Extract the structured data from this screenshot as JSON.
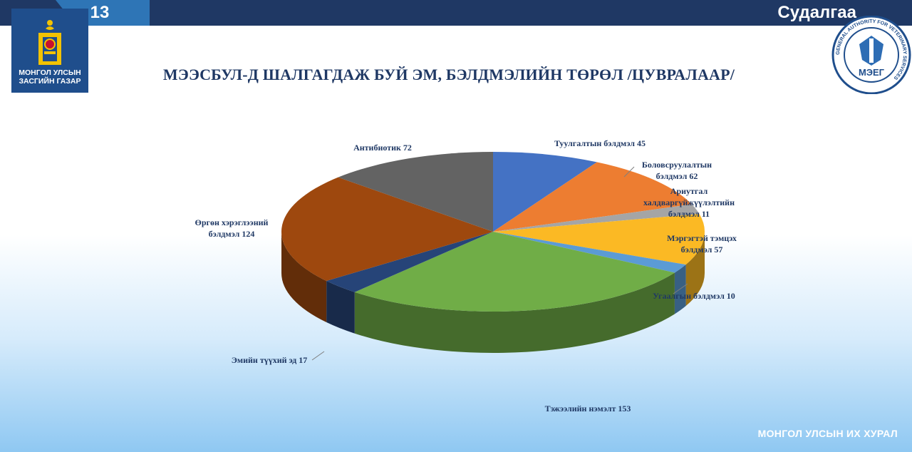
{
  "header": {
    "slide_number": "13",
    "section": "Судалгаа",
    "org_name_line1": "МОНГОЛ УЛСЫН",
    "org_name_line2": "ЗАСГИЙН ГАЗАР",
    "partner_logo_text": "МЭЕГ",
    "partner_logo_ring_text": "GENERAL AUTHORITY FOR VETERINARY SERVICES"
  },
  "footer": {
    "text": "МОНГОЛ УЛСЫН ИХ ХУРАЛ"
  },
  "colors": {
    "topbar": "#1f3864",
    "slide_tab": "#2e75b6",
    "title": "#1f3864"
  },
  "chart_data": {
    "type": "pie",
    "title": "МЭЭСБУЛ-Д ШАЛГАГДАЖ БУЙ ЭМ, БЭЛДМЭЛИЙН ТӨРӨЛ /ЦУВРАЛААР/",
    "style": "3d",
    "slices": [
      {
        "label": "Туулгалтын бэлдмэл",
        "value": 45,
        "color": "#4472c4",
        "label_lines": [
          "Туулгалтын бэлдмэл 45"
        ]
      },
      {
        "label": "Боловсруулалтын бэлдмэл",
        "value": 62,
        "color": "#ed7d31",
        "label_lines": [
          "Боловсруулалтын",
          "бэлдмэл 62"
        ]
      },
      {
        "label": "Ариутгал халдваргүйжүүлэлтийн бэлдмэл",
        "value": 11,
        "color": "#a5a5a5",
        "label_lines": [
          "Ариутгал",
          "халдваргүйжүүлэлтийн",
          "бэлдмэл 11"
        ]
      },
      {
        "label": "Мэргэгтэй тэмцэх бэлдмэл",
        "value": 57,
        "color": "#fbb924",
        "label_lines": [
          "Мэргэгтэй тэмцэх",
          "бэлдмэл 57"
        ]
      },
      {
        "label": "Угаалгын бэлдмэл",
        "value": 10,
        "color": "#5b9bd5",
        "label_lines": [
          "Угаалгын бэлдмэл 10"
        ]
      },
      {
        "label": "Тэжээлийн нэмэлт",
        "value": 153,
        "color": "#70ad47",
        "label_lines": [
          "Тэжээлийн нэмэлт 153"
        ]
      },
      {
        "label": "Эмийн түүхий эд",
        "value": 17,
        "color": "#264478",
        "label_lines": [
          "Эмийн түүхий эд 17"
        ]
      },
      {
        "label": "Өргөн хэрэглээний бэлдмэл",
        "value": 124,
        "color": "#9e480e",
        "label_lines": [
          "Өргөн хэрэглээний",
          "бэлдмэл 124"
        ]
      },
      {
        "label": "Антибиотик",
        "value": 72,
        "color": "#636363",
        "label_lines": [
          "Антибиотик 72"
        ]
      }
    ],
    "legend": "none"
  }
}
